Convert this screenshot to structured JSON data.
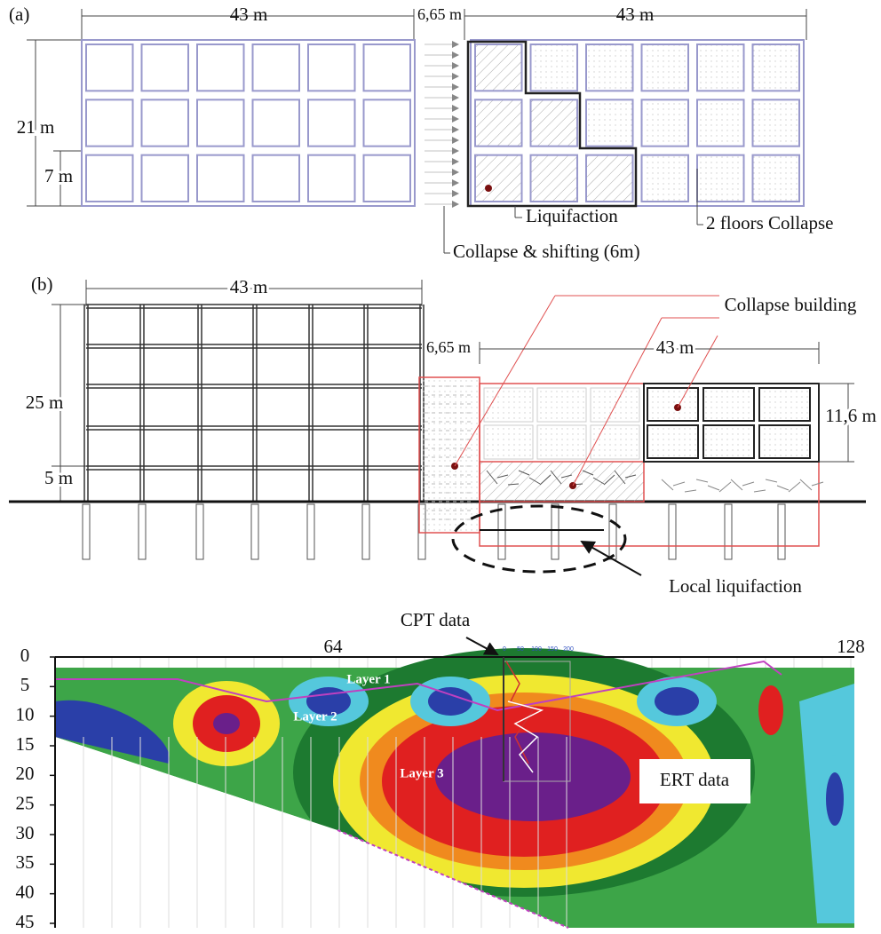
{
  "panel_a": {
    "label": "(a)",
    "left_width": "43 m",
    "gap": "6,65 m",
    "right_width": "43 m",
    "height": "21 m",
    "bay": "7 m",
    "annotations": [
      "Liquifaction",
      "2 floors Collapse",
      "Collapse & shifting (6m)"
    ]
  },
  "panel_b": {
    "label": "(b)",
    "left_width": "43 m",
    "gap": "6,65 m",
    "right_width": "43 m",
    "height": "25 m",
    "ground_floor": "5 m",
    "collapsed_height": "11,6 m",
    "annotations": [
      "Collapse building",
      "Local liquifaction"
    ]
  },
  "panel_c": {
    "cpt_label": "CPT data",
    "cpt_ticks": [
      0,
      50,
      100,
      150,
      200
    ],
    "distance_labels": [
      64,
      128
    ],
    "depth_labels": [
      0,
      5,
      10,
      15,
      20,
      25,
      30,
      35,
      40,
      45
    ],
    "layers": [
      "Layer 1",
      "Layer 2",
      "Layer 3"
    ],
    "ert_label": "ERT data"
  }
}
